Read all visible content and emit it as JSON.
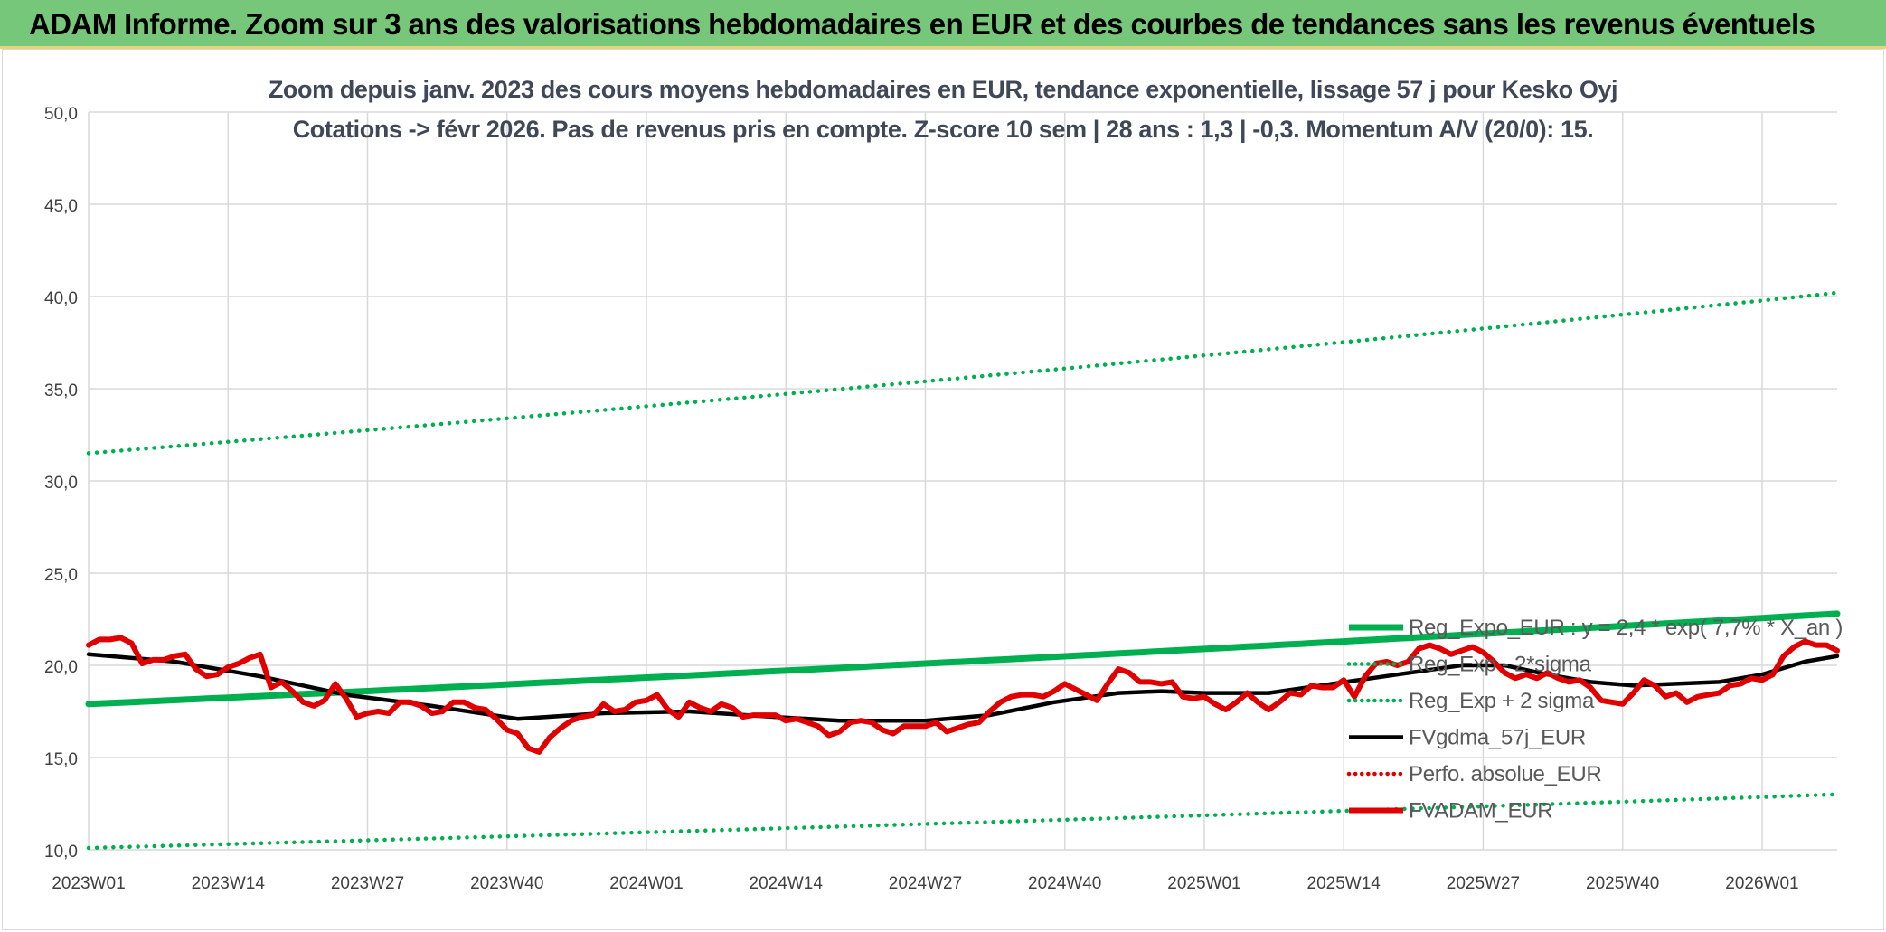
{
  "header": {
    "title": "ADAM Informe. Zoom sur 3 ans des valorisations hebdomadaires en EUR et des courbes de tendances sans les revenus éventuels"
  },
  "chart_data": {
    "type": "line",
    "title_line1": "Zoom depuis janv. 2023 des cours moyens hebdomadaires en EUR, tendance exponentielle, lissage 57 j pour Kesko Oyj",
    "title_line2": "Cotations -> févr 2026. Pas de revenus pris en compte. Z-score 10 sem | 28 ans : 1,3 | -0,3. Momentum A/V (20/0): 15.",
    "ylim": [
      10,
      50
    ],
    "yticks": [
      "10,0",
      "15,0",
      "20,0",
      "25,0",
      "30,0",
      "35,0",
      "40,0",
      "45,0",
      "50,0"
    ],
    "xticks": [
      {
        "i": 0,
        "label": "2023W01"
      },
      {
        "i": 13,
        "label": "2023W14"
      },
      {
        "i": 26,
        "label": "2023W27"
      },
      {
        "i": 39,
        "label": "2023W40"
      },
      {
        "i": 52,
        "label": "2024W01"
      },
      {
        "i": 65,
        "label": "2024W14"
      },
      {
        "i": 78,
        "label": "2024W27"
      },
      {
        "i": 91,
        "label": "2024W40"
      },
      {
        "i": 104,
        "label": "2025W01"
      },
      {
        "i": 117,
        "label": "2025W14"
      },
      {
        "i": 130,
        "label": "2025W27"
      },
      {
        "i": 143,
        "label": "2025W40"
      },
      {
        "i": 156,
        "label": "2026W01"
      }
    ],
    "x_count": 164,
    "grid": true,
    "legend_position": "bottom-right",
    "colors": {
      "reg_expo": "#00b050",
      "sigma": "#00b050",
      "fvgdma": "#000000",
      "perfo": "#e00000",
      "fvadam": "#e00000",
      "grid": "#d9d9d9",
      "axis_text": "#404040"
    },
    "series": [
      {
        "name": "Reg_Expo_EUR : y = 2,4 * exp( 7,7% * X_an )",
        "style": "solid-thick",
        "color": "#00b050",
        "start": 17.9,
        "end": 22.8
      },
      {
        "name": "Reg_Exp - 2*sigma",
        "style": "dotted",
        "color": "#00b050",
        "start": 10.1,
        "end": 13.0
      },
      {
        "name": "Reg_Exp + 2 sigma",
        "style": "dotted",
        "color": "#00b050",
        "start": 31.5,
        "end": 40.2
      },
      {
        "name": "FVgdma_57j_EUR",
        "style": "solid",
        "color": "#000000",
        "points": [
          [
            0,
            20.6
          ],
          [
            8,
            20.2
          ],
          [
            16,
            19.4
          ],
          [
            24,
            18.4
          ],
          [
            32,
            17.8
          ],
          [
            40,
            17.1
          ],
          [
            48,
            17.4
          ],
          [
            56,
            17.5
          ],
          [
            64,
            17.2
          ],
          [
            70,
            17.0
          ],
          [
            78,
            17.0
          ],
          [
            84,
            17.3
          ],
          [
            90,
            18.0
          ],
          [
            96,
            18.5
          ],
          [
            100,
            18.6
          ],
          [
            104,
            18.5
          ],
          [
            110,
            18.5
          ],
          [
            116,
            19.0
          ],
          [
            122,
            19.5
          ],
          [
            128,
            20.0
          ],
          [
            132,
            20.0
          ],
          [
            136,
            19.5
          ],
          [
            140,
            19.1
          ],
          [
            144,
            18.9
          ],
          [
            148,
            19.0
          ],
          [
            152,
            19.1
          ],
          [
            156,
            19.5
          ],
          [
            160,
            20.2
          ],
          [
            163,
            20.5
          ]
        ]
      },
      {
        "name": "Perfo. absolue_EUR",
        "style": "dotted",
        "color": "#e00000"
      },
      {
        "name": "FVADAM_EUR",
        "style": "solid-thick",
        "color": "#e00000",
        "points": [
          [
            0,
            21.1
          ],
          [
            1,
            21.4
          ],
          [
            2,
            21.4
          ],
          [
            3,
            21.5
          ],
          [
            4,
            21.2
          ],
          [
            5,
            20.1
          ],
          [
            6,
            20.3
          ],
          [
            7,
            20.3
          ],
          [
            8,
            20.5
          ],
          [
            9,
            20.6
          ],
          [
            10,
            19.8
          ],
          [
            11,
            19.4
          ],
          [
            12,
            19.5
          ],
          [
            13,
            19.9
          ],
          [
            14,
            20.1
          ],
          [
            15,
            20.4
          ],
          [
            16,
            20.6
          ],
          [
            17,
            18.8
          ],
          [
            18,
            19.1
          ],
          [
            19,
            18.6
          ],
          [
            20,
            18.0
          ],
          [
            21,
            17.8
          ],
          [
            22,
            18.1
          ],
          [
            23,
            19.0
          ],
          [
            24,
            18.2
          ],
          [
            25,
            17.2
          ],
          [
            26,
            17.4
          ],
          [
            27,
            17.5
          ],
          [
            28,
            17.4
          ],
          [
            29,
            18.0
          ],
          [
            30,
            18.0
          ],
          [
            31,
            17.8
          ],
          [
            32,
            17.4
          ],
          [
            33,
            17.5
          ],
          [
            34,
            18.0
          ],
          [
            35,
            18.0
          ],
          [
            36,
            17.7
          ],
          [
            37,
            17.6
          ],
          [
            38,
            17.1
          ],
          [
            39,
            16.5
          ],
          [
            40,
            16.3
          ],
          [
            41,
            15.5
          ],
          [
            42,
            15.3
          ],
          [
            43,
            16.1
          ],
          [
            44,
            16.6
          ],
          [
            45,
            17.0
          ],
          [
            46,
            17.2
          ],
          [
            47,
            17.3
          ],
          [
            48,
            17.9
          ],
          [
            49,
            17.5
          ],
          [
            50,
            17.6
          ],
          [
            51,
            18.0
          ],
          [
            52,
            18.1
          ],
          [
            53,
            18.4
          ],
          [
            54,
            17.6
          ],
          [
            55,
            17.2
          ],
          [
            56,
            18.0
          ],
          [
            57,
            17.7
          ],
          [
            58,
            17.5
          ],
          [
            59,
            17.9
          ],
          [
            60,
            17.7
          ],
          [
            61,
            17.2
          ],
          [
            62,
            17.3
          ],
          [
            63,
            17.3
          ],
          [
            64,
            17.3
          ],
          [
            65,
            17.0
          ],
          [
            66,
            17.1
          ],
          [
            67,
            16.9
          ],
          [
            68,
            16.7
          ],
          [
            69,
            16.2
          ],
          [
            70,
            16.4
          ],
          [
            71,
            16.9
          ],
          [
            72,
            17.0
          ],
          [
            73,
            16.9
          ],
          [
            74,
            16.5
          ],
          [
            75,
            16.3
          ],
          [
            76,
            16.7
          ],
          [
            77,
            16.7
          ],
          [
            78,
            16.7
          ],
          [
            79,
            16.9
          ],
          [
            80,
            16.4
          ],
          [
            81,
            16.6
          ],
          [
            82,
            16.8
          ],
          [
            83,
            16.9
          ],
          [
            84,
            17.5
          ],
          [
            85,
            18.0
          ],
          [
            86,
            18.3
          ],
          [
            87,
            18.4
          ],
          [
            88,
            18.4
          ],
          [
            89,
            18.3
          ],
          [
            90,
            18.6
          ],
          [
            91,
            19.0
          ],
          [
            92,
            18.7
          ],
          [
            93,
            18.4
          ],
          [
            94,
            18.1
          ],
          [
            95,
            19.0
          ],
          [
            96,
            19.8
          ],
          [
            97,
            19.6
          ],
          [
            98,
            19.1
          ],
          [
            99,
            19.1
          ],
          [
            100,
            19.0
          ],
          [
            101,
            19.1
          ],
          [
            102,
            18.3
          ],
          [
            103,
            18.2
          ],
          [
            104,
            18.3
          ],
          [
            105,
            17.9
          ],
          [
            106,
            17.6
          ],
          [
            107,
            18.0
          ],
          [
            108,
            18.5
          ],
          [
            109,
            18.0
          ],
          [
            110,
            17.6
          ],
          [
            111,
            18.0
          ],
          [
            112,
            18.5
          ],
          [
            113,
            18.4
          ],
          [
            114,
            18.9
          ],
          [
            115,
            18.8
          ],
          [
            116,
            18.8
          ],
          [
            117,
            19.2
          ],
          [
            118,
            18.3
          ],
          [
            119,
            19.4
          ],
          [
            120,
            20.1
          ],
          [
            121,
            20.2
          ],
          [
            122,
            20.0
          ],
          [
            123,
            20.2
          ],
          [
            124,
            20.9
          ],
          [
            125,
            21.1
          ],
          [
            126,
            20.9
          ],
          [
            127,
            20.6
          ],
          [
            128,
            20.8
          ],
          [
            129,
            21.0
          ],
          [
            130,
            20.7
          ],
          [
            131,
            20.2
          ],
          [
            132,
            19.6
          ],
          [
            133,
            19.3
          ],
          [
            134,
            19.5
          ],
          [
            135,
            19.3
          ],
          [
            136,
            19.6
          ],
          [
            137,
            19.3
          ],
          [
            138,
            19.1
          ],
          [
            139,
            19.2
          ],
          [
            140,
            18.8
          ],
          [
            141,
            18.1
          ],
          [
            142,
            18.0
          ],
          [
            143,
            17.9
          ],
          [
            144,
            18.5
          ],
          [
            145,
            19.2
          ],
          [
            146,
            18.9
          ],
          [
            147,
            18.3
          ],
          [
            148,
            18.5
          ],
          [
            149,
            18.0
          ],
          [
            150,
            18.3
          ],
          [
            151,
            18.4
          ],
          [
            152,
            18.5
          ],
          [
            153,
            18.9
          ],
          [
            154,
            19.0
          ],
          [
            155,
            19.3
          ],
          [
            156,
            19.2
          ],
          [
            157,
            19.5
          ],
          [
            158,
            20.5
          ],
          [
            159,
            21.0
          ],
          [
            160,
            21.3
          ],
          [
            161,
            21.1
          ],
          [
            162,
            21.1
          ],
          [
            163,
            20.8
          ]
        ]
      }
    ]
  }
}
